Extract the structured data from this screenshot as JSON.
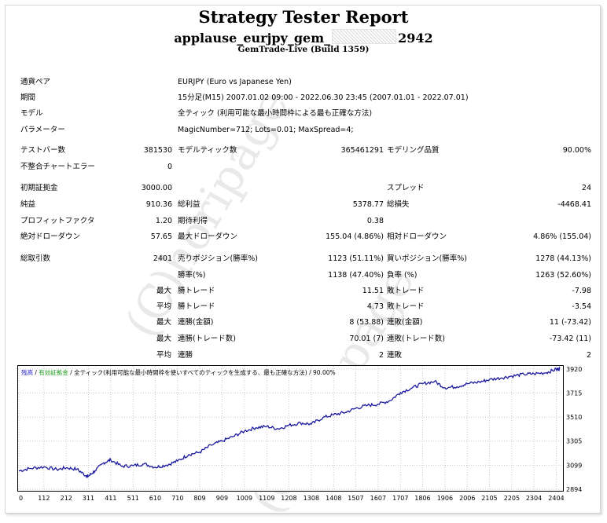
{
  "header": {
    "title": "Strategy Tester Report",
    "subtitle_prefix": "applause_eurjpy_gem_",
    "subtitle_suffix": "2942",
    "build": "GemTrade-Live (Build 1359)"
  },
  "info": {
    "symbol_label": "通貨ペア",
    "symbol_value": "EURJPY (Euro vs Japanese Yen)",
    "period_label": "期間",
    "period_value": "15分足(M15) 2007.01.02 09:00 - 2022.06.30 23:45 (2007.01.01 - 2022.07.01)",
    "model_label": "モデル",
    "model_value": "全ティック (利用可能な最小時間枠による最も正確な方法)",
    "params_label": "パラメーター",
    "params_value": "MagicNumber=712; Lots=0.01; MaxSpread=4;"
  },
  "stats": {
    "bars_label": "テストバー数",
    "bars_value": "381530",
    "ticks_label": "モデルティック数",
    "ticks_value": "365461291",
    "quality_label": "モデリング品質",
    "quality_value": "90.00%",
    "mismatch_label": "不整合チャートエラー",
    "mismatch_value": "0",
    "deposit_label": "初期証拠金",
    "deposit_value": "3000.00",
    "spread_label": "スプレッド",
    "spread_value": "24",
    "net_label": "純益",
    "net_value": "910.36",
    "gross_profit_label": "総利益",
    "gross_profit_value": "5378.77",
    "gross_loss_label": "総損失",
    "gross_loss_value": "-4468.41",
    "pf_label": "プロフィットファクタ",
    "pf_value": "1.20",
    "expected_label": "期待利得",
    "expected_value": "0.38",
    "abs_dd_label": "絶対ドローダウン",
    "abs_dd_value": "57.65",
    "max_dd_label": "最大ドローダウン",
    "max_dd_value": "155.04 (4.86%)",
    "rel_dd_label": "相対ドローダウン",
    "rel_dd_value": "4.86% (155.04)",
    "trades_label": "総取引数",
    "trades_value": "2401",
    "short_label": "売りポジション(勝率%)",
    "short_value": "1123 (51.11%)",
    "long_label": "買いポジション(勝率%)",
    "long_value": "1278 (44.13%)",
    "win_rate_label": "勝率(%)",
    "win_rate_value": "1138 (47.40%)",
    "loss_rate_label": "負率 (%)",
    "loss_rate_value": "1263 (52.60%)",
    "max_word": "最大",
    "avg_word": "平均",
    "largest_win_label": "勝トレード",
    "largest_win_value": "11.51",
    "largest_loss_label": "敗トレード",
    "largest_loss_value": "-7.98",
    "avg_win_label": "勝トレード",
    "avg_win_value": "4.73",
    "avg_loss_label": "敗トレード",
    "avg_loss_value": "-3.54",
    "cons_wins_amt_label": "連勝(金額)",
    "cons_wins_amt_value": "8 (53.88)",
    "cons_loss_amt_label": "連敗(金額)",
    "cons_loss_amt_value": "11 (-73.42)",
    "cons_wins_cnt_label": "連勝(トレード数)",
    "cons_wins_cnt_value": "70.01 (7)",
    "cons_loss_cnt_label": "連敗(トレード数)",
    "cons_loss_cnt_value": "-73.42 (11)",
    "avg_cons_wins_label": "連勝",
    "avg_cons_wins_value": "2",
    "avg_cons_loss_label": "連敗",
    "avg_cons_loss_value": "2"
  },
  "chart_legend": {
    "balance": "残高",
    "sep1": " / ",
    "equity": "有効証拠金",
    "sep2": " / ",
    "model": "全ティック(利用可能な最小時間枠を使いすべてのティックを生成する、最も正確な方法)",
    "sep3": " / ",
    "quality": "90.00%"
  },
  "watermark": {
    "text1": "(C)horipage",
    "text2": "(C)horipage"
  },
  "colors": {
    "balance_line": "#1a1a9e",
    "legend_balance": "#1a1ac8",
    "legend_equity": "#1e9e1e",
    "grid": "#c8c8c8",
    "axis": "#000000"
  },
  "chart_data": {
    "type": "line",
    "title": "",
    "xlabel": "",
    "ylabel": "",
    "x_ticks": [
      0,
      112,
      212,
      311,
      411,
      511,
      610,
      710,
      809,
      909,
      1009,
      1109,
      1208,
      1308,
      1408,
      1507,
      1607,
      1707,
      1806,
      1906,
      2006,
      2105,
      2205,
      2304,
      2404
    ],
    "y_ticks": [
      3920,
      3715,
      3510,
      3305,
      3099,
      2894
    ],
    "xlim": [
      0,
      2420
    ],
    "ylim": [
      2894,
      3940
    ],
    "grid": true,
    "series": [
      {
        "name": "残高",
        "x": [
          0,
          50,
          112,
          170,
          212,
          260,
          300,
          311,
          340,
          380,
          411,
          460,
          511,
          560,
          610,
          660,
          710,
          760,
          809,
          860,
          909,
          960,
          1009,
          1060,
          1109,
          1160,
          1208,
          1260,
          1308,
          1360,
          1408,
          1460,
          1507,
          1560,
          1607,
          1660,
          1707,
          1760,
          1806,
          1860,
          1906,
          1960,
          2006,
          2060,
          2105,
          2160,
          2205,
          2260,
          2304,
          2360,
          2404,
          2420
        ],
        "y": [
          3050,
          3072,
          3085,
          3062,
          3078,
          3065,
          3010,
          3005,
          3050,
          3120,
          3145,
          3090,
          3095,
          3110,
          3082,
          3100,
          3135,
          3190,
          3210,
          3270,
          3305,
          3345,
          3390,
          3420,
          3430,
          3410,
          3440,
          3460,
          3450,
          3505,
          3530,
          3550,
          3585,
          3610,
          3620,
          3650,
          3720,
          3760,
          3795,
          3815,
          3760,
          3770,
          3795,
          3810,
          3830,
          3845,
          3860,
          3875,
          3880,
          3890,
          3918,
          3925
        ]
      }
    ]
  }
}
